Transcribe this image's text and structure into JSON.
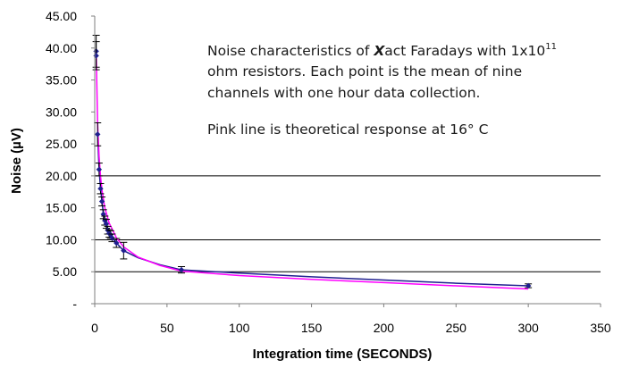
{
  "chart_data": {
    "type": "scatter",
    "xlabel": "Integration time (SECONDS)",
    "ylabel": "Noise (µV)",
    "xlim": [
      0,
      350
    ],
    "ylim": [
      0,
      45
    ],
    "x_ticks": [
      "0",
      "50",
      "100",
      "150",
      "200",
      "250",
      "300",
      "350"
    ],
    "y_ticks": [
      "45.00",
      "40.00",
      "35.00",
      "30.00",
      "25.00",
      "20.00",
      "15.00",
      "10.00",
      "5.00",
      "-"
    ],
    "grid": "horizontal at 5, 10, 20",
    "series": [
      {
        "color": "#1f1f8f",
        "marker": "diamond",
        "x": [
          1,
          1,
          2,
          3,
          4,
          5,
          6,
          7,
          8,
          9,
          10,
          11,
          12,
          15,
          20,
          60,
          300
        ],
        "y": [
          39.5,
          38.8,
          26.5,
          21,
          18,
          16,
          14,
          13,
          12.5,
          11.5,
          11,
          10.8,
          10.3,
          9.5,
          8.3,
          5.3,
          2.8
        ],
        "yerr": [
          2.5,
          2.2,
          1.8,
          1.0,
          0.8,
          0.7,
          0.7,
          0.7,
          0.7,
          0.6,
          0.6,
          0.6,
          0.6,
          0.7,
          1.3,
          0.5,
          0.3
        ]
      },
      {
        "color": "#ff00ff",
        "x": [
          1,
          2,
          3,
          4,
          5,
          7,
          10,
          15,
          20,
          30,
          45,
          60,
          100,
          150,
          200,
          250,
          300
        ],
        "y": [
          39.8,
          28.2,
          23,
          19.9,
          17.8,
          15,
          12.6,
          10.3,
          8.9,
          7.3,
          6.0,
          5.1,
          4.4,
          3.8,
          3.3,
          2.8,
          2.3
        ]
      }
    ],
    "blue_line": {
      "x": [
        20,
        30,
        45,
        60,
        100,
        150,
        200,
        250,
        300
      ],
      "y": [
        8.3,
        7.2,
        6.1,
        5.3,
        4.8,
        4.2,
        3.7,
        3.2,
        2.8
      ]
    },
    "annotation": {
      "line1_pre": "Noise characteristics of ",
      "line1_bold": "X",
      "line1_post": "act Faradays with 1x10",
      "line1_sup": "11",
      "line2": "ohm resistors. Each point is the mean of nine",
      "line3": "channels with one hour data collection.",
      "line4": "Pink line is theoretical response at 16° C"
    }
  }
}
